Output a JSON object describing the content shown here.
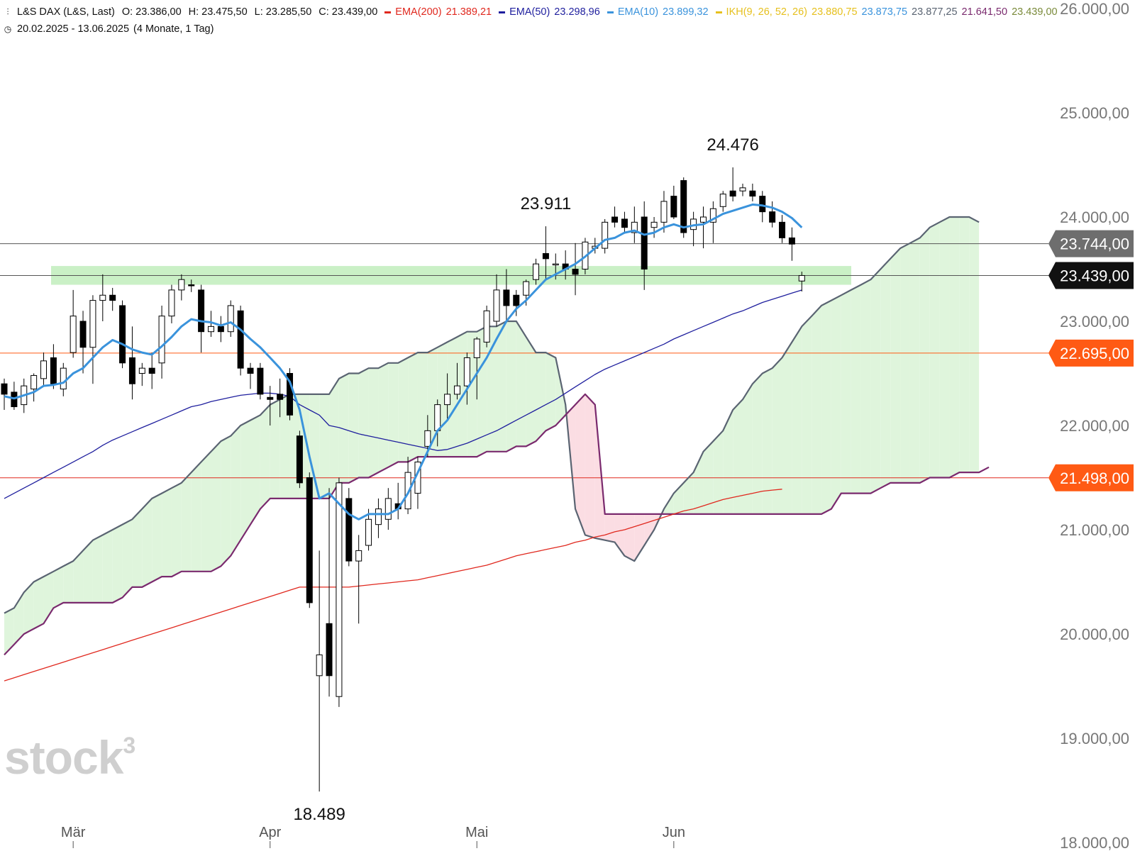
{
  "header": {
    "instrument": "L&S DAX (L&S, Last)",
    "ohlc": [
      {
        "label": "O:",
        "value": "23.386,00"
      },
      {
        "label": "H:",
        "value": "23.475,50"
      },
      {
        "label": "L:",
        "value": "23.285,50"
      },
      {
        "label": "C:",
        "value": "23.439,00"
      }
    ],
    "indicators": [
      {
        "label": "EMA(200)",
        "value": "21.389,21",
        "color": "#e0281e"
      },
      {
        "label": "EMA(50)",
        "value": "23.298,96",
        "color": "#1f1f9e"
      },
      {
        "label": "EMA(10)",
        "value": "23.899,32",
        "color": "#3a93dc"
      },
      {
        "label": "IKH(9, 26, 52, 26)",
        "value": "23.880,75",
        "color": "#e6c01e"
      }
    ],
    "ikh_extra": [
      {
        "value": "23.873,75",
        "color": "#3a93dc"
      },
      {
        "value": "23.877,25",
        "color": "#5a6472"
      },
      {
        "value": "21.641,50",
        "color": "#7a2a6e"
      },
      {
        "value": "23.439,00",
        "color": "#7a8a3a"
      }
    ],
    "range": "20.02.2025 - 13.06.2025",
    "period": "(4 Monate, 1 Tag)"
  },
  "watermark": "stock3",
  "chart_data": {
    "type": "candlestick",
    "y_axis_side": "right",
    "ylim": [
      18000,
      26000
    ],
    "yticks": [
      {
        "value": 26000,
        "label": "26.000,00"
      },
      {
        "value": 25000,
        "label": "25.000,00"
      },
      {
        "value": 24000,
        "label": "24.000,00"
      },
      {
        "value": 23000,
        "label": "23.000,00"
      },
      {
        "value": 22000,
        "label": "22.000,00"
      },
      {
        "value": 21000,
        "label": "21.000,00"
      },
      {
        "value": 20000,
        "label": "20.000,00"
      },
      {
        "value": 19000,
        "label": "19.000,00"
      },
      {
        "value": 18000,
        "label": "18.000,00"
      }
    ],
    "xticks": [
      {
        "index": 7,
        "label": "Mär"
      },
      {
        "index": 27,
        "label": "Apr"
      },
      {
        "index": 48,
        "label": "Mai"
      },
      {
        "index": 68,
        "label": "Jun"
      }
    ],
    "candles": [
      {
        "o": 22400,
        "h": 22450,
        "l": 22150,
        "c": 22300
      },
      {
        "o": 22320,
        "h": 22420,
        "l": 22150,
        "c": 22180
      },
      {
        "o": 22200,
        "h": 22450,
        "l": 22120,
        "c": 22380
      },
      {
        "o": 22350,
        "h": 22500,
        "l": 22230,
        "c": 22480
      },
      {
        "o": 22450,
        "h": 22700,
        "l": 22380,
        "c": 22620
      },
      {
        "o": 22650,
        "h": 22780,
        "l": 22350,
        "c": 22400
      },
      {
        "o": 22350,
        "h": 22600,
        "l": 22280,
        "c": 22550
      },
      {
        "o": 22700,
        "h": 23300,
        "l": 22650,
        "c": 23050
      },
      {
        "o": 23000,
        "h": 23100,
        "l": 22500,
        "c": 22750
      },
      {
        "o": 22750,
        "h": 23250,
        "l": 22400,
        "c": 23200
      },
      {
        "o": 23200,
        "h": 23450,
        "l": 23000,
        "c": 23250
      },
      {
        "o": 23250,
        "h": 23320,
        "l": 23100,
        "c": 23200
      },
      {
        "o": 23150,
        "h": 23200,
        "l": 22550,
        "c": 22600
      },
      {
        "o": 22650,
        "h": 22950,
        "l": 22250,
        "c": 22400
      },
      {
        "o": 22500,
        "h": 22600,
        "l": 22380,
        "c": 22550
      },
      {
        "o": 22550,
        "h": 22700,
        "l": 22350,
        "c": 22500
      },
      {
        "o": 22600,
        "h": 23150,
        "l": 22450,
        "c": 23050
      },
      {
        "o": 23050,
        "h": 23350,
        "l": 22980,
        "c": 23300
      },
      {
        "o": 23300,
        "h": 23450,
        "l": 23200,
        "c": 23400
      },
      {
        "o": 23350,
        "h": 23400,
        "l": 23280,
        "c": 23340
      },
      {
        "o": 23300,
        "h": 23350,
        "l": 22700,
        "c": 22900
      },
      {
        "o": 22900,
        "h": 23100,
        "l": 22850,
        "c": 22950
      },
      {
        "o": 22950,
        "h": 23050,
        "l": 22800,
        "c": 22900
      },
      {
        "o": 22900,
        "h": 23200,
        "l": 22850,
        "c": 23150
      },
      {
        "o": 23100,
        "h": 23150,
        "l": 22480,
        "c": 22550
      },
      {
        "o": 22550,
        "h": 22600,
        "l": 22350,
        "c": 22500
      },
      {
        "o": 22550,
        "h": 22600,
        "l": 22250,
        "c": 22300
      },
      {
        "o": 22270,
        "h": 22380,
        "l": 22000,
        "c": 22250
      },
      {
        "o": 22300,
        "h": 22450,
        "l": 22080,
        "c": 22250
      },
      {
        "o": 22500,
        "h": 22550,
        "l": 22050,
        "c": 22100
      },
      {
        "o": 21900,
        "h": 21950,
        "l": 21400,
        "c": 21450
      },
      {
        "o": 21500,
        "h": 21550,
        "l": 20250,
        "c": 20300
      },
      {
        "o": 19600,
        "h": 20800,
        "l": 18489,
        "c": 19800
      },
      {
        "o": 20100,
        "h": 21400,
        "l": 19400,
        "c": 19600
      },
      {
        "o": 19400,
        "h": 21500,
        "l": 19300,
        "c": 21450
      },
      {
        "o": 21300,
        "h": 21400,
        "l": 20650,
        "c": 20700
      },
      {
        "o": 20700,
        "h": 20950,
        "l": 20100,
        "c": 20800
      },
      {
        "o": 20850,
        "h": 21200,
        "l": 20800,
        "c": 21100
      },
      {
        "o": 21050,
        "h": 21300,
        "l": 20920,
        "c": 21200
      },
      {
        "o": 21100,
        "h": 21400,
        "l": 21000,
        "c": 21300
      },
      {
        "o": 21250,
        "h": 21450,
        "l": 21100,
        "c": 21200
      },
      {
        "o": 21200,
        "h": 21700,
        "l": 21150,
        "c": 21550
      },
      {
        "o": 21350,
        "h": 21700,
        "l": 21200,
        "c": 21650
      },
      {
        "o": 21800,
        "h": 22100,
        "l": 21700,
        "c": 21950
      },
      {
        "o": 21950,
        "h": 22250,
        "l": 21800,
        "c": 22200
      },
      {
        "o": 22200,
        "h": 22500,
        "l": 22050,
        "c": 22300
      },
      {
        "o": 22300,
        "h": 22600,
        "l": 22250,
        "c": 22380
      },
      {
        "o": 22380,
        "h": 22700,
        "l": 22200,
        "c": 22650
      },
      {
        "o": 22650,
        "h": 22850,
        "l": 22250,
        "c": 22830
      },
      {
        "o": 22800,
        "h": 23150,
        "l": 22750,
        "c": 23100
      },
      {
        "o": 23000,
        "h": 23450,
        "l": 22950,
        "c": 23300
      },
      {
        "o": 23300,
        "h": 23500,
        "l": 23000,
        "c": 23150
      },
      {
        "o": 23250,
        "h": 23300,
        "l": 23050,
        "c": 23150
      },
      {
        "o": 23250,
        "h": 23400,
        "l": 23150,
        "c": 23380
      },
      {
        "o": 23400,
        "h": 23600,
        "l": 23350,
        "c": 23550
      },
      {
        "o": 23650,
        "h": 23911,
        "l": 23400,
        "c": 23600
      },
      {
        "o": 23550,
        "h": 23650,
        "l": 23400,
        "c": 23550
      },
      {
        "o": 23550,
        "h": 23680,
        "l": 23400,
        "c": 23500
      },
      {
        "o": 23500,
        "h": 23750,
        "l": 23250,
        "c": 23450
      },
      {
        "o": 23500,
        "h": 23800,
        "l": 23450,
        "c": 23760
      },
      {
        "o": 23700,
        "h": 23800,
        "l": 23650,
        "c": 23720
      },
      {
        "o": 23700,
        "h": 23980,
        "l": 23650,
        "c": 23950
      },
      {
        "o": 24000,
        "h": 24100,
        "l": 23900,
        "c": 23950
      },
      {
        "o": 23980,
        "h": 24050,
        "l": 23850,
        "c": 23900
      },
      {
        "o": 23850,
        "h": 24100,
        "l": 23750,
        "c": 23950
      },
      {
        "o": 24000,
        "h": 24150,
        "l": 23300,
        "c": 23500
      },
      {
        "o": 23900,
        "h": 24000,
        "l": 23800,
        "c": 23950
      },
      {
        "o": 23950,
        "h": 24250,
        "l": 23850,
        "c": 24150
      },
      {
        "o": 24200,
        "h": 24300,
        "l": 23980,
        "c": 24000
      },
      {
        "o": 24350,
        "h": 24380,
        "l": 23800,
        "c": 23850
      },
      {
        "o": 23880,
        "h": 24050,
        "l": 23720,
        "c": 23980
      },
      {
        "o": 23950,
        "h": 24100,
        "l": 23700,
        "c": 24000
      },
      {
        "o": 23950,
        "h": 24150,
        "l": 23750,
        "c": 24080
      },
      {
        "o": 24100,
        "h": 24250,
        "l": 24050,
        "c": 24220
      },
      {
        "o": 24250,
        "h": 24476,
        "l": 24150,
        "c": 24200
      },
      {
        "o": 24250,
        "h": 24320,
        "l": 24200,
        "c": 24280
      },
      {
        "o": 24250,
        "h": 24320,
        "l": 24150,
        "c": 24200
      },
      {
        "o": 24200,
        "h": 24250,
        "l": 23950,
        "c": 24050
      },
      {
        "o": 24050,
        "h": 24150,
        "l": 23900,
        "c": 23950
      },
      {
        "o": 23950,
        "h": 24020,
        "l": 23750,
        "c": 23800
      },
      {
        "o": 23800,
        "h": 23900,
        "l": 23580,
        "c": 23740
      },
      {
        "o": 23386,
        "h": 23475.5,
        "l": 23285.5,
        "c": 23439
      }
    ],
    "ema10": [
      22280,
      22260,
      22290,
      22320,
      22380,
      22390,
      22410,
      22500,
      22550,
      22650,
      22750,
      22820,
      22780,
      22730,
      22700,
      22680,
      22760,
      22850,
      22950,
      23020,
      23000,
      22990,
      22960,
      22990,
      22920,
      22830,
      22750,
      22650,
      22550,
      22420,
      22150,
      21700,
      21300,
      21350,
      21250,
      21150,
      21100,
      21150,
      21150,
      21150,
      21200,
      21350,
      21550,
      21750,
      21950,
      22050,
      22200,
      22350,
      22500,
      22650,
      22830,
      23000,
      23120,
      23200,
      23300,
      23400,
      23450,
      23500,
      23550,
      23620,
      23700,
      23780,
      23800,
      23850,
      23870,
      23830,
      23850,
      23900,
      23930,
      23900,
      23920,
      23930,
      23980,
      24030,
      24060,
      24090,
      24120,
      24110,
      24090,
      24050,
      23990,
      23899
    ],
    "ema50": [
      21300,
      21350,
      21400,
      21450,
      21500,
      21550,
      21600,
      21650,
      21700,
      21750,
      21810,
      21860,
      21900,
      21940,
      21980,
      22020,
      22060,
      22100,
      22140,
      22180,
      22200,
      22230,
      22250,
      22270,
      22290,
      22300,
      22310,
      22310,
      22300,
      22280,
      22200,
      22150,
      22100,
      22000,
      21980,
      21950,
      21920,
      21900,
      21880,
      21860,
      21840,
      21820,
      21800,
      21780,
      21760,
      21770,
      21800,
      21830,
      21870,
      21910,
      21950,
      22000,
      22050,
      22100,
      22150,
      22200,
      22250,
      22310,
      22370,
      22430,
      22490,
      22540,
      22580,
      22620,
      22660,
      22700,
      22740,
      22780,
      22830,
      22870,
      22910,
      22950,
      22990,
      23030,
      23070,
      23100,
      23140,
      23180,
      23210,
      23240,
      23270,
      23299
    ],
    "ema200": [
      19550,
      19580,
      19610,
      19640,
      19670,
      19700,
      19730,
      19760,
      19790,
      19820,
      19850,
      19880,
      19910,
      19940,
      19970,
      20000,
      20030,
      20060,
      20090,
      20120,
      20150,
      20180,
      20210,
      20240,
      20270,
      20300,
      20330,
      20360,
      20390,
      20420,
      20450,
      20450,
      20450,
      20450,
      20450,
      20450,
      20460,
      20470,
      20480,
      20490,
      20500,
      20510,
      20520,
      20540,
      20560,
      20580,
      20600,
      20620,
      20640,
      20660,
      20690,
      20720,
      20750,
      20770,
      20790,
      20810,
      20830,
      20850,
      20880,
      20900,
      20930,
      20950,
      20980,
      21000,
      21030,
      21060,
      21090,
      21120,
      21150,
      21180,
      21200,
      21230,
      21260,
      21290,
      21310,
      21330,
      21350,
      21370,
      21380,
      21389
    ],
    "senkou_a": [
      20200,
      20250,
      20400,
      20500,
      20550,
      20600,
      20650,
      20700,
      20800,
      20900,
      20950,
      21000,
      21050,
      21100,
      21200,
      21300,
      21350,
      21400,
      21450,
      21550,
      21650,
      21750,
      21850,
      21900,
      22000,
      22050,
      22100,
      22200,
      22250,
      22300,
      22300,
      22300,
      22300,
      22300,
      22450,
      22500,
      22500,
      22550,
      22550,
      22600,
      22600,
      22650,
      22700,
      22700,
      22750,
      22800,
      22850,
      22900,
      22900,
      22950,
      22950,
      23000,
      23000,
      22850,
      22700,
      22700,
      22650,
      22200,
      21200,
      20950,
      20920,
      20900,
      20880,
      20750,
      20700,
      20850,
      21000,
      21200,
      21350,
      21450,
      21550,
      21750,
      21850,
      21950,
      22150,
      22250,
      22400,
      22500,
      22550,
      22650,
      22800,
      22950,
      23050,
      23150,
      23200,
      23250,
      23300,
      23350,
      23400,
      23500,
      23600,
      23700,
      23750,
      23800,
      23900,
      23950,
      24000,
      24000,
      24000,
      23950
    ],
    "senkou_b": [
      19800,
      19900,
      20000,
      20050,
      20100,
      20250,
      20300,
      20300,
      20300,
      20300,
      20300,
      20300,
      20350,
      20450,
      20450,
      20500,
      20550,
      20550,
      20600,
      20600,
      20600,
      20600,
      20650,
      20750,
      20900,
      21050,
      21200,
      21300,
      21300,
      21300,
      21300,
      21300,
      21300,
      21300,
      21450,
      21450,
      21500,
      21500,
      21550,
      21600,
      21650,
      21650,
      21700,
      21700,
      21700,
      21700,
      21700,
      21700,
      21700,
      21750,
      21750,
      21750,
      21800,
      21800,
      21850,
      21950,
      22000,
      22100,
      22200,
      22300,
      22200,
      21150,
      21150,
      21150,
      21150,
      21150,
      21150,
      21150,
      21150,
      21150,
      21150,
      21150,
      21150,
      21150,
      21150,
      21150,
      21150,
      21150,
      21150,
      21150,
      21150,
      21150,
      21150,
      21150,
      21200,
      21350,
      21350,
      21350,
      21350,
      21400,
      21450,
      21450,
      21450,
      21450,
      21500,
      21500,
      21500,
      21550,
      21550,
      21550,
      21600
    ],
    "annotations": [
      {
        "index": 74,
        "value": 24476,
        "label": "24.476",
        "pos": "above"
      },
      {
        "index": 55,
        "value": 23911,
        "label": "23.911",
        "pos": "above"
      },
      {
        "index": 32,
        "value": 18489,
        "label": "18.489",
        "pos": "below"
      }
    ],
    "resistance_zone": {
      "from": 23350,
      "to": 23530
    },
    "hlines": [
      {
        "value": 23744,
        "label": "23.744,00",
        "color": "#555555",
        "badge": "#6e6e6e"
      },
      {
        "value": 23439,
        "label": "23.439,00",
        "color": "#555555",
        "badge": "#111111"
      },
      {
        "value": 22695,
        "label": "22.695,00",
        "color": "#ff5a14",
        "badge": "#ff5a14"
      },
      {
        "value": 21498,
        "label": "21.498,00",
        "color": "#e0281e",
        "badge": "#ff5a14"
      }
    ],
    "colors": {
      "up": "#ffffff",
      "down": "#000000",
      "ema10": "#3a93dc",
      "ema50": "#1f1f9e",
      "ema200": "#e0281e",
      "senkou_a": "#5a6472",
      "senkou_b": "#7a2a6e",
      "cloud_bull": "#dff5dc",
      "cloud_bear": "#fbdde3",
      "zone": "#c7efc3",
      "grid_text": "#777777"
    }
  }
}
